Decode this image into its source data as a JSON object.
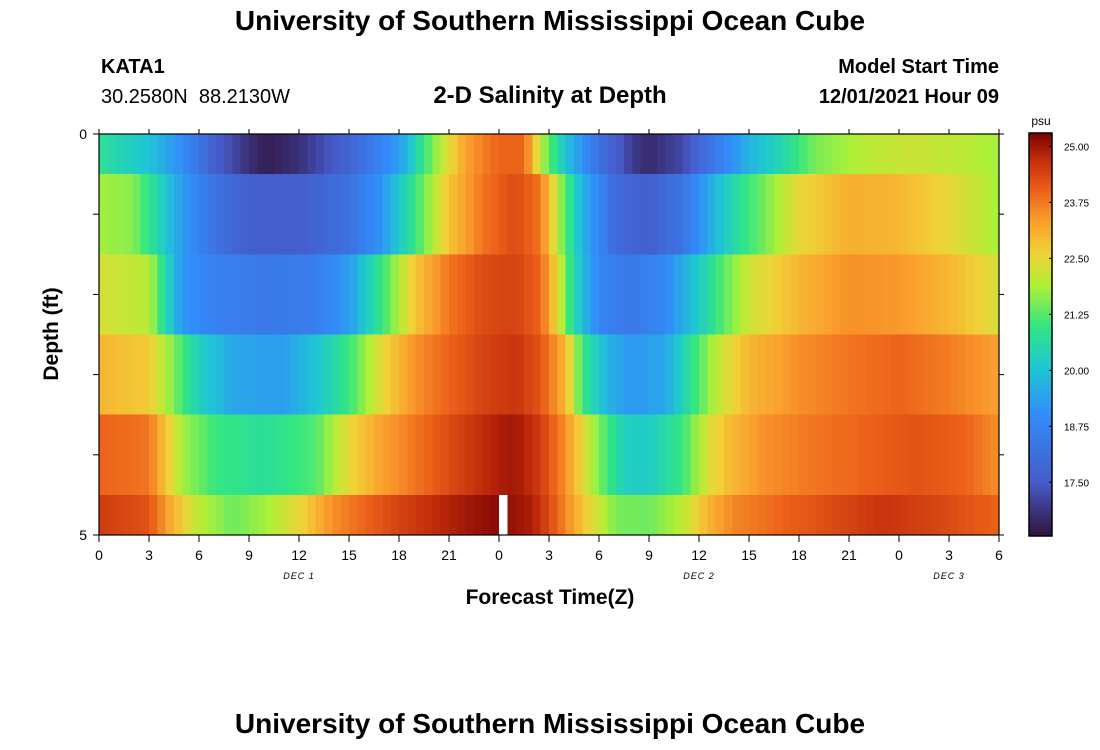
{
  "page": {
    "title": "University of Southern Mississippi Ocean Cube",
    "title_repeat": "University of Southern Mississippi Ocean Cube",
    "station_id": "KATA1",
    "station_coords": "30.2580N  88.2130W",
    "chart_title": "2-D Salinity at Depth",
    "model_start_label": "Model Start Time",
    "model_start_value": "12/01/2021 Hour 09"
  },
  "chart_data": {
    "type": "heatmap",
    "title": "2-D Salinity at Depth",
    "xlabel": "Forecast Time(Z)",
    "ylabel": "Depth (ft)",
    "x_hours_range": [
      0,
      54
    ],
    "y_range": [
      0,
      5
    ],
    "y_tick_labels": [
      "0",
      "5"
    ],
    "x_tick_labels": [
      "0",
      "3",
      "6",
      "9",
      "12",
      "15",
      "18",
      "21",
      "0",
      "3",
      "6",
      "9",
      "12",
      "15",
      "18",
      "21",
      "0",
      "3",
      "6"
    ],
    "date_labels": [
      {
        "text": "DEC 1",
        "hour": 12
      },
      {
        "text": "DEC 2",
        "hour": 36
      },
      {
        "text": "DEC 3",
        "hour": 51
      }
    ],
    "colorbar": {
      "unit": "psu",
      "min": 16.3,
      "max": 25.3,
      "ticks": [
        "25.00",
        "23.75",
        "22.50",
        "21.25",
        "20.00",
        "18.75",
        "17.50"
      ],
      "tick_values": [
        25.0,
        23.75,
        22.5,
        21.25,
        20.0,
        18.75,
        17.5
      ]
    },
    "rows": [
      {
        "depth_range": [
          0,
          0.5
        ],
        "keyframes": [
          [
            0,
            20.8
          ],
          [
            1,
            20.5
          ],
          [
            3,
            20.0
          ],
          [
            5,
            19.0
          ],
          [
            7,
            17.6
          ],
          [
            9,
            16.8
          ],
          [
            10,
            16.5
          ],
          [
            12,
            16.8
          ],
          [
            15,
            17.8
          ],
          [
            18,
            19.3
          ],
          [
            20,
            21.5
          ],
          [
            22,
            23.3
          ],
          [
            24,
            24.0
          ],
          [
            25.5,
            24.0
          ],
          [
            26.5,
            22.0
          ],
          [
            28,
            20.0
          ],
          [
            30,
            18.2
          ],
          [
            32,
            17.0
          ],
          [
            33,
            16.7
          ],
          [
            35,
            17.2
          ],
          [
            37,
            18.5
          ],
          [
            39,
            19.7
          ],
          [
            41,
            20.5
          ],
          [
            43,
            21.5
          ],
          [
            46,
            22.0
          ],
          [
            49,
            22.2
          ],
          [
            52,
            22.0
          ],
          [
            54,
            21.8
          ]
        ]
      },
      {
        "depth_range": [
          0.5,
          1.5
        ],
        "keyframes": [
          [
            0,
            21.8
          ],
          [
            2,
            21.6
          ],
          [
            3.5,
            20.5
          ],
          [
            5,
            19.3
          ],
          [
            7,
            18.2
          ],
          [
            9,
            17.6
          ],
          [
            12,
            17.6
          ],
          [
            15,
            18.2
          ],
          [
            17,
            19.2
          ],
          [
            19,
            21.0
          ],
          [
            21,
            22.8
          ],
          [
            23,
            23.8
          ],
          [
            25,
            24.3
          ],
          [
            26.5,
            23.8
          ],
          [
            27.5,
            22.0
          ],
          [
            29,
            19.7
          ],
          [
            31,
            18.0
          ],
          [
            33,
            17.6
          ],
          [
            35,
            18.3
          ],
          [
            37,
            19.8
          ],
          [
            38.5,
            20.8
          ],
          [
            40,
            21.5
          ],
          [
            42,
            22.5
          ],
          [
            45,
            23.1
          ],
          [
            48,
            23.0
          ],
          [
            51,
            22.5
          ],
          [
            54,
            21.8
          ]
        ]
      },
      {
        "depth_range": [
          1.5,
          2.5
        ],
        "keyframes": [
          [
            0,
            22.3
          ],
          [
            3,
            22.0
          ],
          [
            4,
            20.5
          ],
          [
            5,
            19.2
          ],
          [
            7,
            18.7
          ],
          [
            10,
            18.4
          ],
          [
            13,
            18.6
          ],
          [
            15,
            19.3
          ],
          [
            17,
            21.0
          ],
          [
            19,
            22.8
          ],
          [
            21,
            23.8
          ],
          [
            23,
            24.3
          ],
          [
            25,
            24.4
          ],
          [
            26.5,
            24.0
          ],
          [
            27.5,
            22.5
          ],
          [
            28.5,
            20.5
          ],
          [
            30,
            18.8
          ],
          [
            32,
            18.4
          ],
          [
            34,
            18.9
          ],
          [
            36,
            20.2
          ],
          [
            37.5,
            21.3
          ],
          [
            39,
            22.2
          ],
          [
            42,
            23.0
          ],
          [
            45,
            23.5
          ],
          [
            48,
            23.4
          ],
          [
            51,
            23.0
          ],
          [
            54,
            22.3
          ]
        ]
      },
      {
        "depth_range": [
          2.5,
          3.5
        ],
        "keyframes": [
          [
            0,
            23.0
          ],
          [
            3,
            22.7
          ],
          [
            4.5,
            21.5
          ],
          [
            6,
            20.3
          ],
          [
            8,
            19.5
          ],
          [
            11,
            19.3
          ],
          [
            13,
            20.0
          ],
          [
            15,
            21.0
          ],
          [
            17,
            22.5
          ],
          [
            19,
            23.5
          ],
          [
            21,
            24.0
          ],
          [
            23,
            24.4
          ],
          [
            25,
            24.6
          ],
          [
            26.5,
            24.2
          ],
          [
            28,
            23.0
          ],
          [
            29,
            21.0
          ],
          [
            30.5,
            19.7
          ],
          [
            32,
            19.2
          ],
          [
            34,
            19.5
          ],
          [
            35.5,
            20.8
          ],
          [
            37,
            22.0
          ],
          [
            39,
            23.0
          ],
          [
            42,
            23.5
          ],
          [
            45,
            23.8
          ],
          [
            48,
            24.0
          ],
          [
            51,
            23.7
          ],
          [
            54,
            23.3
          ]
        ]
      },
      {
        "depth_range": [
          3.5,
          4.5
        ],
        "keyframes": [
          [
            0,
            24.0
          ],
          [
            3,
            23.8
          ],
          [
            4,
            22.8
          ],
          [
            5,
            21.8
          ],
          [
            7,
            21.0
          ],
          [
            10,
            20.7
          ],
          [
            13,
            21.2
          ],
          [
            15,
            22.5
          ],
          [
            17,
            23.3
          ],
          [
            19,
            23.8
          ],
          [
            21,
            24.3
          ],
          [
            24,
            24.9
          ],
          [
            25,
            25.0
          ],
          [
            26.5,
            24.5
          ],
          [
            28,
            23.5
          ],
          [
            30,
            21.5
          ],
          [
            31.5,
            20.3
          ],
          [
            33,
            20.2
          ],
          [
            35,
            21.0
          ],
          [
            36.5,
            22.3
          ],
          [
            38,
            23.0
          ],
          [
            40,
            23.5
          ],
          [
            43,
            23.8
          ],
          [
            46,
            24.0
          ],
          [
            49,
            24.2
          ],
          [
            52,
            24.0
          ],
          [
            54,
            23.5
          ]
        ]
      },
      {
        "depth_range": [
          4.5,
          5
        ],
        "keyframes": [
          [
            0,
            24.5
          ],
          [
            3,
            24.2
          ],
          [
            4.5,
            23.0
          ],
          [
            6,
            22.0
          ],
          [
            8,
            21.4
          ],
          [
            10,
            21.8
          ],
          [
            12,
            22.5
          ],
          [
            14,
            23.5
          ],
          [
            16,
            24.0
          ],
          [
            18,
            24.4
          ],
          [
            20,
            24.7
          ],
          [
            22,
            25.0
          ],
          [
            24.2,
            25.2
          ],
          [
            24.2,
            -1
          ],
          [
            24.7,
            -1
          ],
          [
            24.7,
            25.1
          ],
          [
            26,
            24.9
          ],
          [
            27.5,
            24.0
          ],
          [
            29,
            22.8
          ],
          [
            31,
            21.5
          ],
          [
            33,
            21.4
          ],
          [
            35,
            22.0
          ],
          [
            36.5,
            23.0
          ],
          [
            38,
            23.6
          ],
          [
            41,
            24.0
          ],
          [
            44,
            24.3
          ],
          [
            47,
            24.6
          ],
          [
            50,
            24.4
          ],
          [
            54,
            24.0
          ]
        ]
      }
    ]
  }
}
